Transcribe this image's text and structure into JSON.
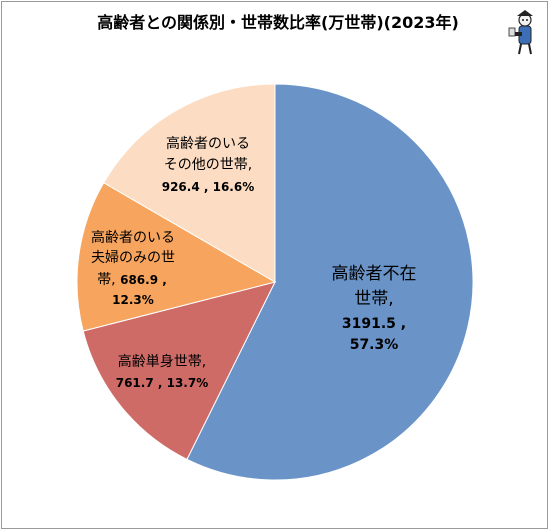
{
  "chart_data": {
    "type": "pie",
    "title": "高齢者との関係別・世帯数比率(万世帯)(2023年)",
    "slices": [
      {
        "label_lines": [
          "高齢者不在",
          "世帯,"
        ],
        "value_lines": [
          "3191.5 ,",
          "57.3%"
        ],
        "value": 3191.5,
        "percent": 57.3,
        "color": "#6a93c8"
      },
      {
        "label_lines": [
          "高齢単身世帯,"
        ],
        "value_lines": [
          "761.7 , 13.7%"
        ],
        "value": 761.7,
        "percent": 13.7,
        "color": "#cf6b67"
      },
      {
        "label_lines": [
          "高齢者のいる",
          "夫婦のみの世",
          "帯, "
        ],
        "value_lines": [
          "686.9 ,",
          "12.3%"
        ],
        "value": 686.9,
        "percent": 12.3,
        "color": "#f7a55e"
      },
      {
        "label_lines": [
          "高齢者のいる",
          "その他の世帯,"
        ],
        "value_lines": [
          "926.4 , 16.6%"
        ],
        "value": 926.4,
        "percent": 16.6,
        "color": "#fcdcc2"
      }
    ]
  },
  "mascot": {
    "name": "mascot-icon"
  }
}
